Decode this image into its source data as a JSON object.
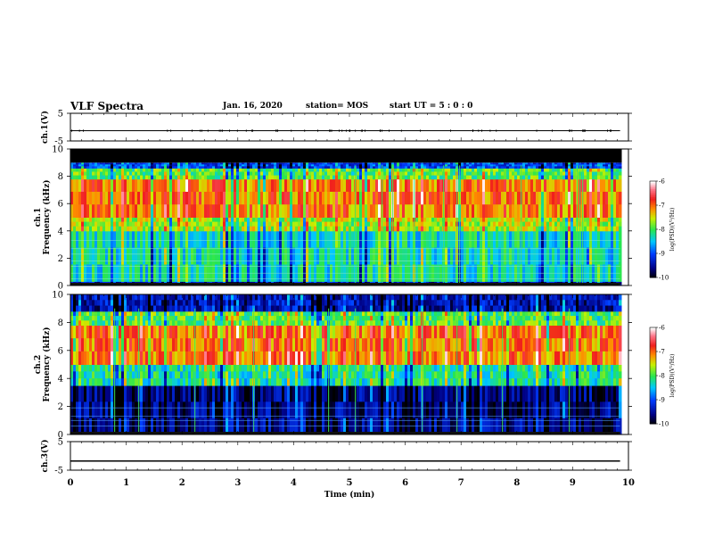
{
  "header": {
    "title": "VLF Spectra",
    "date": "Jan. 16, 2020",
    "station": "station= MOS",
    "start": "start UT =  5 : 0  : 0"
  },
  "chart_data": [
    {
      "type": "line",
      "panel": "ch.1 waveform",
      "ylabel": "ch.1(V)",
      "yticks": [
        "5",
        "-5"
      ],
      "ylim": [
        -5,
        5
      ],
      "xlim": [
        0,
        10
      ],
      "series": [
        {
          "x": [
            0,
            9.85
          ],
          "values": [
            -1.3,
            -1.3
          ]
        }
      ]
    },
    {
      "type": "heatmap",
      "panel": "ch.1 spectrogram",
      "ylabel_top": "ch.1",
      "ylabel": "Frequency (kHz)",
      "yticks": [
        "0",
        "2",
        "4",
        "6",
        "8",
        "10"
      ],
      "ylim": [
        0,
        10
      ],
      "xlim": [
        0,
        10
      ],
      "data_end_min": 9.85,
      "bands_khz": [
        {
          "range": [
            0,
            0.3
          ],
          "level": -9.3
        },
        {
          "range": [
            0.3,
            4.0
          ],
          "level": -8.3
        },
        {
          "range": [
            4.0,
            5.0
          ],
          "level": -7.6
        },
        {
          "range": [
            5.0,
            7.8
          ],
          "level": -7.0
        },
        {
          "range": [
            7.8,
            8.6
          ],
          "level": -7.9
        },
        {
          "range": [
            8.6,
            9.0
          ],
          "level": -9.0
        },
        {
          "range": [
            9.0,
            10
          ],
          "level": "no data"
        }
      ],
      "colorbar": {
        "label": "log(PSD)(V²/Hz)",
        "ticks": [
          "-6",
          "-7",
          "-8",
          "-9",
          "-10"
        ],
        "range": [
          -10,
          -6
        ]
      }
    },
    {
      "type": "heatmap",
      "panel": "ch.2 spectrogram",
      "ylabel_top": "ch.2",
      "ylabel": "Frequency (kHz)",
      "yticks": [
        "0",
        "2",
        "4",
        "6",
        "8",
        "10"
      ],
      "ylim": [
        0,
        10
      ],
      "xlim": [
        0,
        10
      ],
      "data_end_min": 9.85,
      "bands_khz": [
        {
          "range": [
            0,
            3.5
          ],
          "level": -9.6
        },
        {
          "range": [
            3.5,
            5.0
          ],
          "level": -8.2
        },
        {
          "range": [
            5.0,
            7.8
          ],
          "level": -7.0
        },
        {
          "range": [
            7.8,
            8.8
          ],
          "level": -7.9
        },
        {
          "range": [
            8.8,
            10
          ],
          "level": -9.4
        }
      ],
      "colorbar": {
        "label": "log(PSD)(V²/Hz)",
        "ticks": [
          "-6",
          "-7",
          "-8",
          "-9",
          "-10"
        ],
        "range": [
          -10,
          -6
        ]
      }
    },
    {
      "type": "line",
      "panel": "ch.3 waveform",
      "ylabel": "ch.3(V)",
      "yticks": [
        "5",
        "-5"
      ],
      "ylim": [
        -5,
        5
      ],
      "xlim": [
        0,
        10
      ],
      "series": [
        {
          "x": [
            0,
            9.85
          ],
          "values": [
            -1.8,
            -1.8
          ]
        }
      ]
    }
  ],
  "xaxis": {
    "label": "Time (min)",
    "ticks": [
      "0",
      "1",
      "2",
      "3",
      "4",
      "5",
      "6",
      "7",
      "8",
      "9",
      "10"
    ]
  }
}
